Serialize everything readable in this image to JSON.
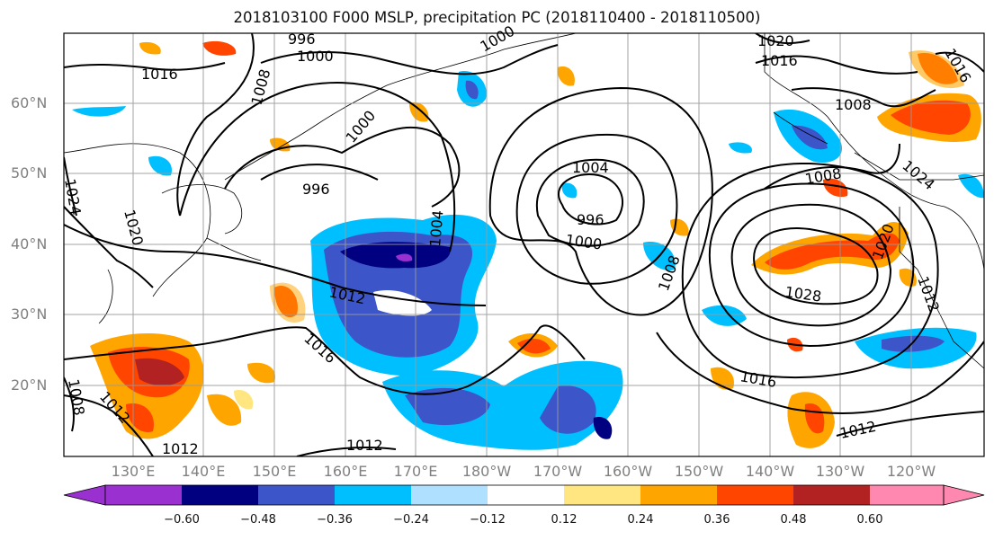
{
  "title": "2018103100 F000 MSLP, precipitation PC (2018110400 - 2018110500)",
  "latitude_labels": [
    "60°N",
    "50°N",
    "40°N",
    "30°N",
    "20°N"
  ],
  "longitude_labels": [
    "130°E",
    "140°E",
    "150°E",
    "160°E",
    "170°E",
    "180°W",
    "170°W",
    "160°W",
    "150°W",
    "140°W",
    "130°W",
    "120°W"
  ],
  "colorbar": {
    "tick_labels": [
      "−0.60",
      "−0.48",
      "−0.36",
      "−0.24",
      "−0.12",
      "0.12",
      "0.24",
      "0.36",
      "0.48",
      "0.60"
    ],
    "colors": [
      "#9b30d0",
      "#000080",
      "#3c55c8",
      "#00bfff",
      "#b0e0ff",
      "#ffffff",
      "#ffe680",
      "#ffa500",
      "#ff4500",
      "#b22222",
      "#ff88b0"
    ]
  },
  "contour_labels": {
    "c1016_nw": "1016",
    "c996_n": "996",
    "c1000_n": "1000",
    "c1008_nw": "1008",
    "c1000_a": "1000",
    "c1000_b": "1000",
    "c996_w": "996",
    "c1024_w": "1024",
    "c1020_w": "1020",
    "c1004_c": "1004",
    "c996_low": "996",
    "c1000_low": "1000",
    "c1004_low": "1004",
    "c1008_e": "1008",
    "c1012_c": "1012",
    "c1016_c": "1016",
    "c1012_sw": "1012",
    "c1008_sw": "1008",
    "c1012_s1": "1012",
    "c1012_s2": "1012",
    "c1020_ne": "1020",
    "c1016_ne": "1016",
    "c1016_nee": "1016",
    "c1008_ne": "1008",
    "c1008_ak": "1008",
    "c1024_ak": "1024",
    "c1028_h": "1028",
    "c1020_h": "1020",
    "c1012_h": "1012",
    "c1016_s": "1016",
    "c1012_se": "1012"
  }
}
